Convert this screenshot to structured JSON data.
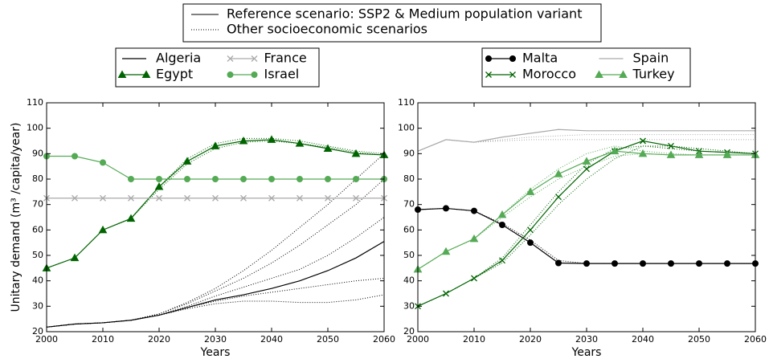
{
  "legend": {
    "reference": "Reference scenario: SSP2 & Medium population variant",
    "others": "Other socioeconomic scenarios"
  },
  "chart_data": [
    {
      "type": "line",
      "ylabel": "Unitary demand (m³ /capita/year)",
      "xlabel": "Years",
      "x": [
        2000,
        2005,
        2010,
        2015,
        2020,
        2025,
        2030,
        2035,
        2040,
        2045,
        2050,
        2055,
        2060
      ],
      "xlim": [
        2000,
        2060
      ],
      "xticks": [
        2000,
        2010,
        2020,
        2030,
        2040,
        2050,
        2060
      ],
      "ylim": [
        20,
        110
      ],
      "yticks": [
        20,
        30,
        40,
        50,
        60,
        70,
        80,
        90,
        100,
        110
      ],
      "series": [
        {
          "name": "Algeria",
          "color": "#000000",
          "marker": "none",
          "values": [
            21.8,
            23,
            23.5,
            24.5,
            26.5,
            29.5,
            32.5,
            34.5,
            37,
            40,
            44,
            49,
            55.5
          ],
          "scenarios": [
            [
              21.8,
              23,
              23.5,
              24.5,
              26.5,
              29,
              31,
              32,
              32,
              31.5,
              31.5,
              32.5,
              34.5
            ],
            [
              21.8,
              23,
              23.5,
              24.5,
              26.5,
              29.5,
              32,
              34,
              35.5,
              37,
              38.5,
              40,
              41
            ],
            [
              21.8,
              23,
              23.5,
              24.5,
              26.5,
              30,
              34,
              37.5,
              41,
              44.5,
              50,
              57,
              65
            ],
            [
              21.8,
              23,
              23.5,
              24.5,
              27,
              31,
              36,
              41,
              47,
              54,
              62,
              70,
              80
            ],
            [
              21.8,
              23,
              23.5,
              24.5,
              27,
              31.5,
              37,
              44,
              52,
              61,
              70,
              80,
              90
            ]
          ]
        },
        {
          "name": "Egypt",
          "color": "#006400",
          "marker": "triangle",
          "values": [
            45,
            49,
            60,
            64.5,
            77,
            87,
            93,
            95,
            95.5,
            94,
            92,
            90,
            89.5
          ],
          "scenarios": [
            [
              45,
              49,
              60,
              64.5,
              77,
              88,
              94,
              96,
              96,
              95,
              93,
              91,
              90
            ],
            [
              45,
              49,
              60,
              64.5,
              76,
              86,
              92,
              94.5,
              95,
              94,
              92.5,
              90.5,
              89.5
            ]
          ]
        },
        {
          "name": "France",
          "color": "#aaaaaa",
          "marker": "x",
          "values": [
            72.5,
            72.5,
            72.5,
            72.5,
            72.5,
            72.5,
            72.5,
            72.5,
            72.5,
            72.5,
            72.5,
            72.5,
            72.5
          ]
        },
        {
          "name": "Israel",
          "color": "#55aa55",
          "marker": "circle",
          "values": [
            89,
            89,
            86.5,
            80,
            80,
            80,
            80,
            80,
            80,
            80,
            80,
            80,
            80
          ]
        }
      ]
    },
    {
      "type": "line",
      "xlabel": "Years",
      "x": [
        2000,
        2005,
        2010,
        2015,
        2020,
        2025,
        2030,
        2035,
        2040,
        2045,
        2050,
        2055,
        2060
      ],
      "xlim": [
        2000,
        2060
      ],
      "xticks": [
        2000,
        2010,
        2020,
        2030,
        2040,
        2050,
        2060
      ],
      "ylim": [
        20,
        110
      ],
      "yticks": [
        20,
        30,
        40,
        50,
        60,
        70,
        80,
        90,
        100,
        110
      ],
      "series": [
        {
          "name": "Malta",
          "color": "#000000",
          "marker": "circle",
          "values": [
            68,
            68.5,
            67.5,
            62,
            55,
            47,
            46.8,
            46.8,
            46.8,
            46.8,
            46.8,
            46.8,
            46.8
          ],
          "scenarios": [
            [
              68,
              68.5,
              67.5,
              62.5,
              56,
              48,
              46.8,
              46.8,
              46.8,
              46.8,
              46.8,
              46.8,
              46.8
            ]
          ]
        },
        {
          "name": "Morocco",
          "color": "#006400",
          "marker": "x",
          "values": [
            30,
            35,
            41,
            48,
            60,
            73,
            84,
            91,
            95,
            93,
            91,
            90.5,
            90
          ],
          "scenarios": [
            [
              30,
              35,
              41,
              49,
              62,
              75,
              86,
              92,
              93,
              92,
              91,
              90.5,
              90
            ],
            [
              30,
              35,
              41,
              47,
              58,
              70,
              80,
              88,
              93,
              93,
              92,
              91,
              90
            ]
          ]
        },
        {
          "name": "Spain",
          "color": "#aaaaaa",
          "marker": "none",
          "values": [
            91,
            95.5,
            94.5,
            96.5,
            98,
            99.5,
            99,
            99,
            99,
            99,
            99,
            99,
            99
          ],
          "scenarios": [
            [
              91,
              95.5,
              94.5,
              95.5,
              96.5,
              97,
              97.5,
              97.5,
              97.5,
              97.5,
              97.5,
              97.5,
              97.5
            ],
            [
              91,
              95.5,
              94.5,
              95,
              95.5,
              95.5,
              95.5,
              95.5,
              95.5,
              95.5,
              95.5,
              95.5,
              95.5
            ]
          ]
        },
        {
          "name": "Turkey",
          "color": "#55aa55",
          "marker": "triangle",
          "values": [
            44.5,
            51.5,
            56.5,
            66,
            75,
            82,
            87,
            91,
            90,
            89.5,
            89.5,
            89.5,
            89.5
          ],
          "scenarios": [
            [
              44.5,
              51.5,
              56.5,
              65,
              73,
              80,
              85,
              89,
              90,
              89.5,
              89.5,
              89.5,
              89.5
            ],
            [
              44.5,
              51.5,
              56.5,
              66,
              76,
              84,
              90,
              93,
              91,
              90,
              89.5,
              89.5,
              89.5
            ]
          ]
        }
      ]
    }
  ]
}
